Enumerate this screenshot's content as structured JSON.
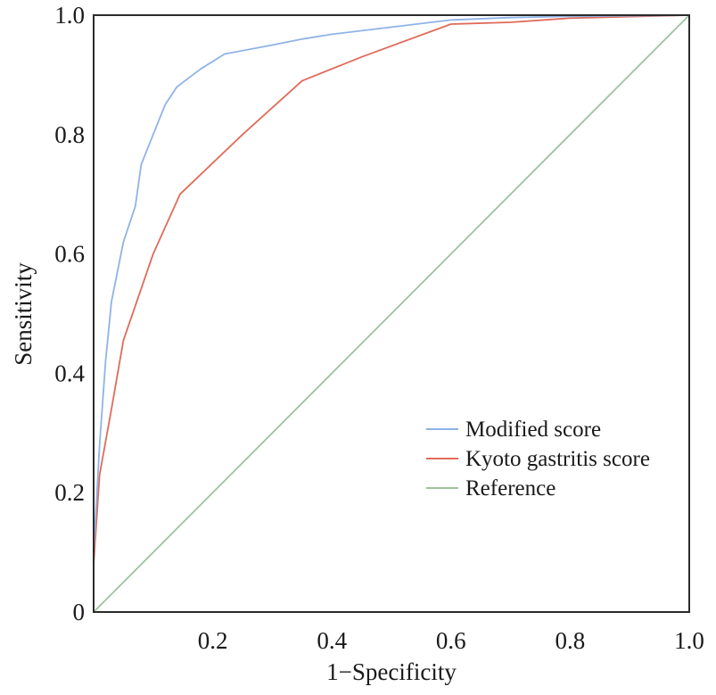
{
  "chart_data": {
    "type": "line",
    "title": "",
    "xlabel": "1−Specificity",
    "ylabel": "Sensitivity",
    "xlim": [
      0,
      1
    ],
    "ylim": [
      0,
      1
    ],
    "x_ticks": [
      "0.2",
      "0.4",
      "0.6",
      "0.8",
      "1.0"
    ],
    "y_ticks": [
      "0",
      "0.2",
      "0.4",
      "0.6",
      "0.8",
      "1.0"
    ],
    "grid": false,
    "legend_position": "bottom-right",
    "series": [
      {
        "name": "Modified score",
        "color": "#8fb3e6",
        "points": [
          [
            0.0,
            0.1
          ],
          [
            0.01,
            0.28
          ],
          [
            0.02,
            0.42
          ],
          [
            0.03,
            0.52
          ],
          [
            0.05,
            0.62
          ],
          [
            0.07,
            0.68
          ],
          [
            0.08,
            0.75
          ],
          [
            0.1,
            0.8
          ],
          [
            0.12,
            0.85
          ],
          [
            0.14,
            0.88
          ],
          [
            0.18,
            0.91
          ],
          [
            0.22,
            0.935
          ],
          [
            0.3,
            0.95
          ],
          [
            0.35,
            0.96
          ],
          [
            0.4,
            0.968
          ],
          [
            0.5,
            0.98
          ],
          [
            0.6,
            0.992
          ],
          [
            0.7,
            0.996
          ],
          [
            0.8,
            0.998
          ],
          [
            1.0,
            1.0
          ]
        ]
      },
      {
        "name": "Kyoto gastritis score",
        "color": "#e06b5a",
        "points": [
          [
            0.0,
            0.08
          ],
          [
            0.01,
            0.23
          ],
          [
            0.03,
            0.34
          ],
          [
            0.05,
            0.455
          ],
          [
            0.1,
            0.6
          ],
          [
            0.145,
            0.7
          ],
          [
            0.25,
            0.8
          ],
          [
            0.35,
            0.89
          ],
          [
            0.45,
            0.93
          ],
          [
            0.6,
            0.985
          ],
          [
            0.7,
            0.988
          ],
          [
            0.8,
            0.995
          ],
          [
            1.0,
            1.0
          ]
        ]
      },
      {
        "name": "Reference",
        "color": "#9cc49c",
        "points": [
          [
            0.0,
            0.0
          ],
          [
            1.0,
            1.0
          ]
        ]
      }
    ]
  }
}
